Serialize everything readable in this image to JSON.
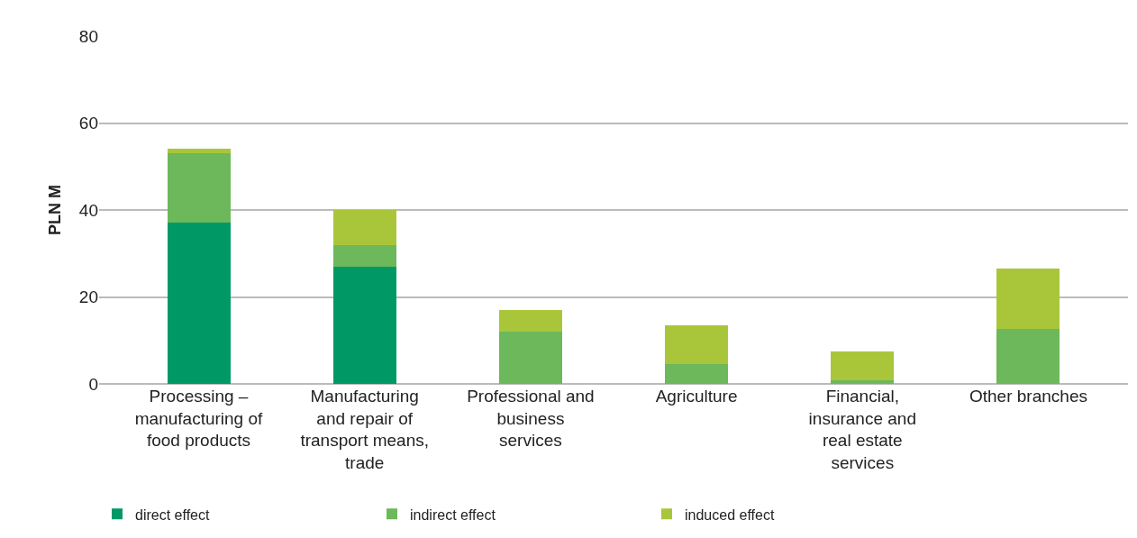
{
  "chart_data": {
    "type": "bar",
    "stacked": true,
    "ylabel": "PLN M",
    "categories": [
      "Processing – manufacturing of food products",
      "Manufacturing and repair of transport means, trade",
      "Professional and business services",
      "Agriculture",
      "Financial, insurance and real estate services",
      "Other branches"
    ],
    "series": [
      {
        "name": "direct effect",
        "color": "#009966",
        "values": [
          37,
          27,
          0,
          0,
          0,
          0
        ]
      },
      {
        "name": "indirect effect",
        "color": "#6cb85a",
        "values": [
          16,
          5,
          12,
          4.5,
          0.8,
          12.6
        ]
      },
      {
        "name": "induced effect",
        "color": "#a9c63b",
        "values": [
          1,
          8,
          5,
          9,
          6.6,
          14
        ]
      }
    ],
    "ylim": [
      0,
      80
    ],
    "yticks": [
      0,
      20,
      40,
      60,
      80
    ],
    "grid": "y",
    "legend": "bottom"
  }
}
